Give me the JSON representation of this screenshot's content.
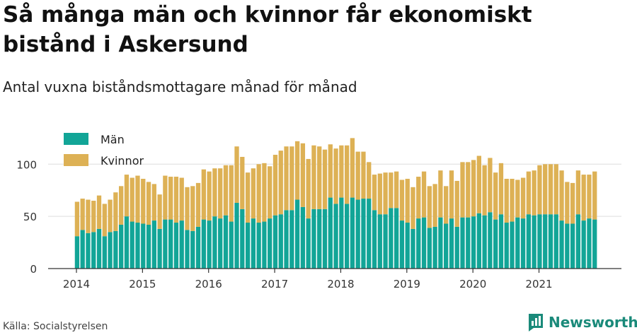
{
  "title": "Så många män och kvinnor får ekonomiskt bistånd i Askersund",
  "subtitle": "Antal vuxna biståndsmottagare månad för månad",
  "source": "Källa: Socialstyrelsen",
  "brand": {
    "name": "Newsworthy",
    "icon": "newsworthy-logo-icon"
  },
  "colors": {
    "man": "#12a597",
    "kvinnor": "#ddb155",
    "grid": "#dddddd",
    "axis": "#333333"
  },
  "chart_data": {
    "type": "bar",
    "stacked": true,
    "start": "2014-01",
    "x_tick_labels": [
      "2014",
      "2015",
      "2016",
      "2017",
      "2018",
      "2019",
      "2020",
      "2021"
    ],
    "y_ticks": [
      0,
      50,
      100
    ],
    "ylim": [
      0,
      130
    ],
    "grid": true,
    "legend_position": "top-left",
    "series": [
      {
        "name": "Män",
        "values": [
          31,
          37,
          34,
          35,
          38,
          31,
          35,
          36,
          42,
          50,
          45,
          44,
          43,
          42,
          46,
          38,
          47,
          47,
          44,
          46,
          37,
          36,
          40,
          47,
          46,
          50,
          48,
          51,
          45,
          63,
          57,
          44,
          48,
          44,
          45,
          48,
          51,
          52,
          56,
          56,
          66,
          59,
          48,
          57,
          57,
          57,
          68,
          62,
          68,
          62,
          68,
          66,
          67,
          67,
          56,
          52,
          52,
          58,
          58,
          46,
          44,
          38,
          48,
          49,
          39,
          40,
          49,
          43,
          48,
          40,
          49,
          49,
          50,
          53,
          51,
          54,
          47,
          52,
          44,
          45,
          49,
          48,
          52,
          51,
          52,
          52,
          52,
          52,
          46,
          43,
          43,
          52,
          46,
          48,
          47
        ]
      },
      {
        "name": "Kvinnor",
        "values": [
          33,
          30,
          32,
          30,
          32,
          31,
          31,
          37,
          37,
          40,
          42,
          45,
          43,
          41,
          35,
          33,
          42,
          41,
          44,
          41,
          41,
          43,
          42,
          48,
          47,
          46,
          48,
          48,
          54,
          54,
          50,
          48,
          48,
          56,
          56,
          50,
          58,
          61,
          61,
          61,
          56,
          61,
          57,
          61,
          60,
          57,
          51,
          53,
          50,
          56,
          57,
          46,
          45,
          35,
          34,
          39,
          40,
          34,
          35,
          39,
          42,
          40,
          40,
          44,
          40,
          41,
          45,
          36,
          46,
          44,
          53,
          53,
          54,
          55,
          48,
          52,
          45,
          49,
          42,
          41,
          36,
          39,
          41,
          43,
          47,
          48,
          48,
          48,
          48,
          40,
          39,
          42,
          44,
          42,
          46
        ]
      }
    ]
  }
}
